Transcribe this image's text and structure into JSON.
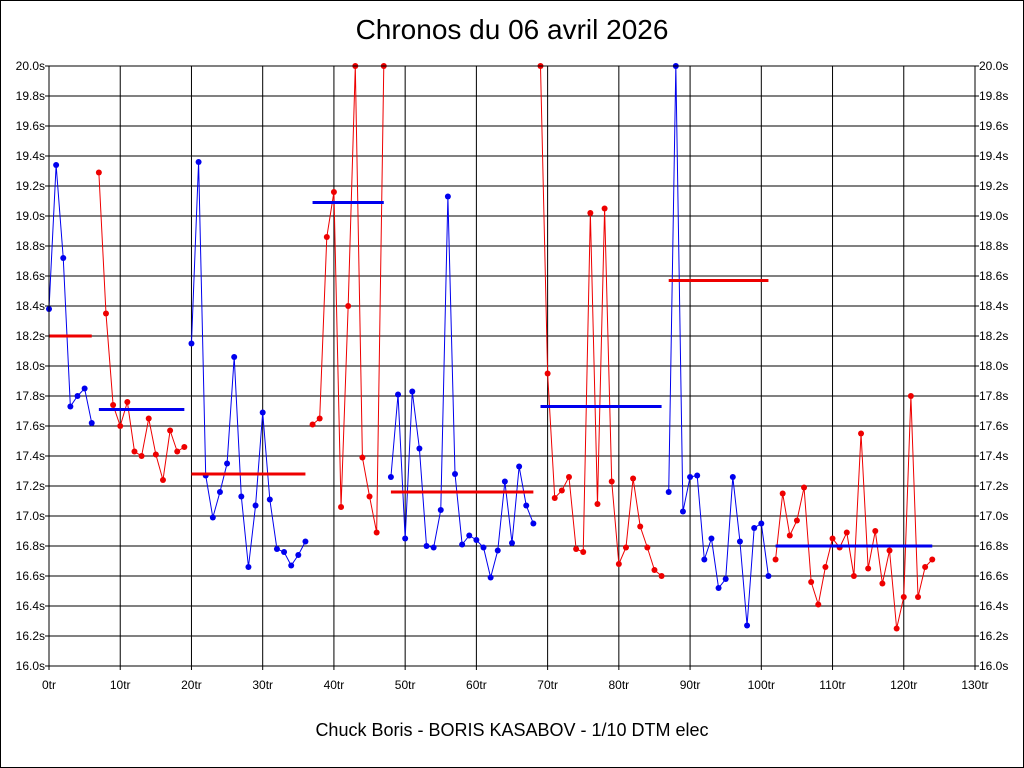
{
  "title": "Chronos du 06 avril 2026",
  "footer": "Chuck Boris - BORIS KASABOV - 1/10 DTM elec",
  "colors": {
    "series_a": "#0000ee",
    "series_b": "#ee0000",
    "grid": "#000000"
  },
  "chart_data": {
    "type": "line",
    "title": "Chronos du 06 avril 2026",
    "xlabel": "",
    "ylabel": "",
    "xlim": [
      0,
      130
    ],
    "ylim": [
      16.0,
      20.0
    ],
    "x_ticks": [
      "0tr",
      "10tr",
      "20tr",
      "30tr",
      "40tr",
      "50tr",
      "60tr",
      "70tr",
      "80tr",
      "90tr",
      "100tr",
      "110tr",
      "120tr",
      "130tr"
    ],
    "y_ticks": [
      "16.0s",
      "16.2s",
      "16.4s",
      "16.6s",
      "16.8s",
      "17.0s",
      "17.2s",
      "17.4s",
      "17.6s",
      "17.8s",
      "18.0s",
      "18.2s",
      "18.4s",
      "18.6s",
      "18.8s",
      "19.0s",
      "19.2s",
      "19.4s",
      "19.6s",
      "19.8s",
      "20.0s"
    ],
    "grid": true,
    "series": [
      {
        "color": "blue",
        "x": [
          0,
          1,
          2,
          3,
          4,
          5,
          6
        ],
        "y": [
          18.38,
          19.34,
          18.72,
          17.73,
          17.8,
          17.85,
          17.62
        ],
        "mean": 18.2
      },
      {
        "color": "red",
        "x": [
          7,
          8,
          9,
          10,
          11,
          12,
          13,
          14,
          15,
          16,
          17,
          18,
          19
        ],
        "y": [
          19.29,
          18.35,
          17.74,
          17.6,
          17.76,
          17.43,
          17.4,
          17.65,
          17.41,
          17.24,
          17.57,
          17.43,
          17.46
        ],
        "mean": 17.71
      },
      {
        "color": "blue",
        "x": [
          20,
          21,
          22,
          23,
          24,
          25,
          26,
          27,
          28,
          29,
          30,
          31,
          32,
          33,
          34,
          35,
          36
        ],
        "y": [
          18.15,
          19.36,
          17.27,
          16.99,
          17.16,
          17.35,
          18.06,
          17.13,
          16.66,
          17.07,
          17.69,
          17.11,
          16.78,
          16.76,
          16.67,
          16.74,
          16.83
        ],
        "mean": 17.28
      },
      {
        "color": "red",
        "x": [
          37,
          38,
          39,
          40,
          41,
          42,
          43,
          44,
          45,
          46,
          47
        ],
        "y": [
          17.61,
          17.65,
          18.86,
          19.16,
          17.06,
          18.4,
          20.0,
          17.39,
          17.13,
          16.89,
          20.0
        ],
        "mean": 19.09
      },
      {
        "color": "blue",
        "x": [
          48,
          49,
          50,
          51,
          52,
          53,
          54,
          55,
          56,
          57,
          58,
          59,
          60,
          61,
          62,
          63,
          64,
          65,
          66,
          67,
          68
        ],
        "y": [
          17.26,
          17.81,
          16.85,
          17.83,
          17.45,
          16.8,
          16.79,
          17.04,
          19.13,
          17.28,
          16.81,
          16.87,
          16.84,
          16.79,
          16.59,
          16.77,
          17.23,
          16.82,
          17.33,
          17.07,
          16.95
        ],
        "mean": 17.16
      },
      {
        "color": "red",
        "x": [
          69,
          70,
          71,
          72,
          73,
          74,
          75,
          76,
          77,
          78,
          79,
          80,
          81,
          82,
          83,
          84,
          85,
          86
        ],
        "y": [
          20.0,
          17.95,
          17.12,
          17.17,
          17.26,
          16.78,
          16.76,
          19.02,
          17.08,
          19.05,
          17.23,
          16.68,
          16.79,
          17.25,
          16.93,
          16.79,
          16.64,
          16.6
        ],
        "mean": 17.73
      },
      {
        "color": "blue",
        "x": [
          87,
          88,
          89,
          90,
          91,
          92,
          93,
          94,
          95,
          96,
          97,
          98,
          99,
          100,
          101
        ],
        "y": [
          17.16,
          20.0,
          17.03,
          17.26,
          17.27,
          16.71,
          16.85,
          16.52,
          16.58,
          17.26,
          16.83,
          16.27,
          16.92,
          16.95,
          16.6
        ],
        "mean": 18.57
      },
      {
        "color": "red",
        "x": [
          102,
          103,
          104,
          105,
          106,
          107,
          108,
          109,
          110,
          111,
          112,
          113,
          114,
          115,
          116,
          117,
          118,
          119,
          120,
          121,
          122,
          123,
          124
        ],
        "y": [
          16.71,
          17.15,
          16.87,
          16.97,
          17.19,
          16.56,
          16.41,
          16.66,
          16.85,
          16.79,
          16.89,
          16.6,
          17.55,
          16.65,
          16.9,
          16.55,
          16.77,
          16.25,
          16.46,
          17.8,
          16.46,
          16.66,
          16.71
        ],
        "mean": 16.8
      }
    ],
    "mean_lines": [
      {
        "color": "red",
        "x": [
          0,
          6
        ],
        "y": 18.2
      },
      {
        "color": "blue",
        "x": [
          7,
          19
        ],
        "y": 17.71
      },
      {
        "color": "red",
        "x": [
          20,
          36
        ],
        "y": 17.28
      },
      {
        "color": "blue",
        "x": [
          37,
          47
        ],
        "y": 19.09
      },
      {
        "color": "red",
        "x": [
          48,
          68
        ],
        "y": 17.16
      },
      {
        "color": "blue",
        "x": [
          69,
          86
        ],
        "y": 17.73
      },
      {
        "color": "red",
        "x": [
          87,
          101
        ],
        "y": 18.57
      },
      {
        "color": "blue",
        "x": [
          102,
          124
        ],
        "y": 16.8
      }
    ]
  }
}
